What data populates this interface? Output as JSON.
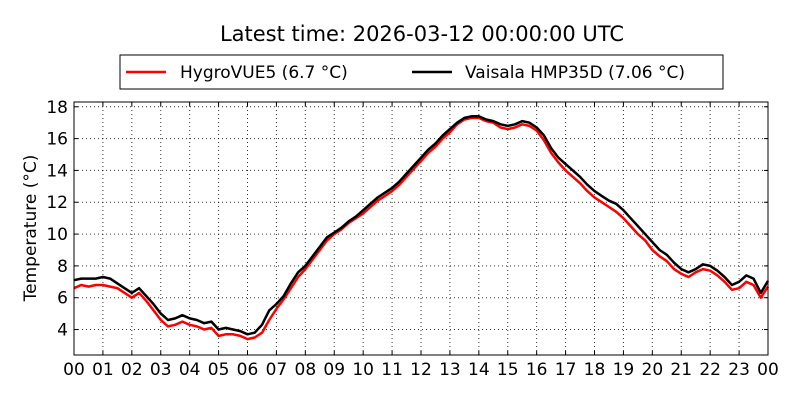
{
  "chart_data": {
    "type": "line",
    "title": "Latest time: 2026-03-12 00:00:00 UTC",
    "xlabel": "",
    "ylabel": "Temperature (°C)",
    "xlim": [
      0,
      24
    ],
    "ylim": [
      2.4,
      18.3
    ],
    "xticks": [
      0,
      1,
      2,
      3,
      4,
      5,
      6,
      7,
      8,
      9,
      10,
      11,
      12,
      13,
      14,
      15,
      16,
      17,
      18,
      19,
      20,
      21,
      22,
      23,
      24
    ],
    "xtick_labels": [
      "00",
      "01",
      "02",
      "03",
      "04",
      "05",
      "06",
      "07",
      "08",
      "09",
      "10",
      "11",
      "12",
      "13",
      "14",
      "15",
      "16",
      "17",
      "18",
      "19",
      "20",
      "21",
      "22",
      "23",
      "00"
    ],
    "yticks": [
      4,
      6,
      8,
      10,
      12,
      14,
      16,
      18
    ],
    "ytick_labels": [
      "4",
      "6",
      "8",
      "10",
      "12",
      "14",
      "16",
      "18"
    ],
    "grid": true,
    "legend_position": "top",
    "series": [
      {
        "name": "HygroVUE5 (6.7 °C)",
        "color": "#ff0000",
        "points": [
          [
            0,
            6.6
          ],
          [
            0.25,
            6.8
          ],
          [
            0.5,
            6.7
          ],
          [
            0.75,
            6.8
          ],
          [
            1,
            6.8
          ],
          [
            1.25,
            6.7
          ],
          [
            1.5,
            6.6
          ],
          [
            1.75,
            6.3
          ],
          [
            2,
            6.0
          ],
          [
            2.25,
            6.3
          ],
          [
            2.5,
            5.8
          ],
          [
            2.75,
            5.2
          ],
          [
            3,
            4.6
          ],
          [
            3.25,
            4.2
          ],
          [
            3.5,
            4.3
          ],
          [
            3.75,
            4.5
          ],
          [
            4,
            4.3
          ],
          [
            4.25,
            4.2
          ],
          [
            4.5,
            4.0
          ],
          [
            4.75,
            4.1
          ],
          [
            5,
            3.6
          ],
          [
            5.25,
            3.7
          ],
          [
            5.5,
            3.7
          ],
          [
            5.75,
            3.6
          ],
          [
            6,
            3.4
          ],
          [
            6.25,
            3.5
          ],
          [
            6.5,
            3.8
          ],
          [
            6.75,
            4.6
          ],
          [
            7,
            5.3
          ],
          [
            7.25,
            5.9
          ],
          [
            7.5,
            6.6
          ],
          [
            7.75,
            7.3
          ],
          [
            8,
            7.8
          ],
          [
            8.25,
            8.4
          ],
          [
            8.5,
            9.0
          ],
          [
            8.75,
            9.6
          ],
          [
            9,
            10.0
          ],
          [
            9.25,
            10.3
          ],
          [
            9.5,
            10.7
          ],
          [
            9.75,
            11.0
          ],
          [
            10,
            11.3
          ],
          [
            10.25,
            11.7
          ],
          [
            10.5,
            12.1
          ],
          [
            10.75,
            12.4
          ],
          [
            11,
            12.7
          ],
          [
            11.25,
            13.1
          ],
          [
            11.5,
            13.6
          ],
          [
            11.75,
            14.1
          ],
          [
            12,
            14.6
          ],
          [
            12.25,
            15.1
          ],
          [
            12.5,
            15.5
          ],
          [
            12.75,
            16.0
          ],
          [
            13,
            16.4
          ],
          [
            13.25,
            16.9
          ],
          [
            13.5,
            17.2
          ],
          [
            13.75,
            17.3
          ],
          [
            14,
            17.3
          ],
          [
            14.25,
            17.1
          ],
          [
            14.5,
            17.0
          ],
          [
            14.75,
            16.7
          ],
          [
            15,
            16.6
          ],
          [
            15.25,
            16.7
          ],
          [
            15.5,
            16.9
          ],
          [
            15.75,
            16.8
          ],
          [
            16,
            16.5
          ],
          [
            16.25,
            15.9
          ],
          [
            16.5,
            15.1
          ],
          [
            16.75,
            14.5
          ],
          [
            17,
            14.0
          ],
          [
            17.25,
            13.6
          ],
          [
            17.5,
            13.2
          ],
          [
            17.75,
            12.7
          ],
          [
            18,
            12.3
          ],
          [
            18.25,
            12.0
          ],
          [
            18.5,
            11.7
          ],
          [
            18.75,
            11.4
          ],
          [
            19,
            11.0
          ],
          [
            19.25,
            10.5
          ],
          [
            19.5,
            10.0
          ],
          [
            19.75,
            9.6
          ],
          [
            20,
            9.0
          ],
          [
            20.25,
            8.6
          ],
          [
            20.5,
            8.3
          ],
          [
            20.75,
            7.8
          ],
          [
            21,
            7.5
          ],
          [
            21.25,
            7.3
          ],
          [
            21.5,
            7.6
          ],
          [
            21.75,
            7.8
          ],
          [
            22,
            7.7
          ],
          [
            22.25,
            7.4
          ],
          [
            22.5,
            7.0
          ],
          [
            22.75,
            6.5
          ],
          [
            23,
            6.6
          ],
          [
            23.25,
            7.0
          ],
          [
            23.5,
            6.8
          ],
          [
            23.75,
            6.0
          ],
          [
            24,
            6.7
          ]
        ]
      },
      {
        "name": "Vaisala HMP35D (7.06 °C)",
        "color": "#000000",
        "points": [
          [
            0,
            7.1
          ],
          [
            0.25,
            7.2
          ],
          [
            0.5,
            7.2
          ],
          [
            0.75,
            7.2
          ],
          [
            1,
            7.3
          ],
          [
            1.25,
            7.2
          ],
          [
            1.5,
            6.9
          ],
          [
            1.75,
            6.6
          ],
          [
            2,
            6.3
          ],
          [
            2.25,
            6.6
          ],
          [
            2.5,
            6.1
          ],
          [
            2.75,
            5.6
          ],
          [
            3,
            5.0
          ],
          [
            3.25,
            4.6
          ],
          [
            3.5,
            4.7
          ],
          [
            3.75,
            4.9
          ],
          [
            4,
            4.7
          ],
          [
            4.25,
            4.6
          ],
          [
            4.5,
            4.4
          ],
          [
            4.75,
            4.5
          ],
          [
            5,
            4.0
          ],
          [
            5.25,
            4.1
          ],
          [
            5.5,
            4.0
          ],
          [
            5.75,
            3.9
          ],
          [
            6,
            3.7
          ],
          [
            6.25,
            3.8
          ],
          [
            6.5,
            4.3
          ],
          [
            6.75,
            5.2
          ],
          [
            7,
            5.6
          ],
          [
            7.25,
            6.1
          ],
          [
            7.5,
            6.9
          ],
          [
            7.75,
            7.6
          ],
          [
            8,
            8.0
          ],
          [
            8.25,
            8.6
          ],
          [
            8.5,
            9.2
          ],
          [
            8.75,
            9.8
          ],
          [
            9,
            10.1
          ],
          [
            9.25,
            10.4
          ],
          [
            9.5,
            10.8
          ],
          [
            9.75,
            11.1
          ],
          [
            10,
            11.5
          ],
          [
            10.25,
            11.9
          ],
          [
            10.5,
            12.3
          ],
          [
            10.75,
            12.6
          ],
          [
            11,
            12.9
          ],
          [
            11.25,
            13.3
          ],
          [
            11.5,
            13.8
          ],
          [
            11.75,
            14.3
          ],
          [
            12,
            14.8
          ],
          [
            12.25,
            15.3
          ],
          [
            12.5,
            15.7
          ],
          [
            12.75,
            16.2
          ],
          [
            13,
            16.6
          ],
          [
            13.25,
            17.0
          ],
          [
            13.5,
            17.3
          ],
          [
            13.75,
            17.4
          ],
          [
            14,
            17.4
          ],
          [
            14.25,
            17.2
          ],
          [
            14.5,
            17.1
          ],
          [
            14.75,
            16.9
          ],
          [
            15,
            16.8
          ],
          [
            15.25,
            16.9
          ],
          [
            15.5,
            17.1
          ],
          [
            15.75,
            17.0
          ],
          [
            16,
            16.7
          ],
          [
            16.25,
            16.2
          ],
          [
            16.5,
            15.4
          ],
          [
            16.75,
            14.8
          ],
          [
            17,
            14.4
          ],
          [
            17.25,
            14.0
          ],
          [
            17.5,
            13.6
          ],
          [
            17.75,
            13.1
          ],
          [
            18,
            12.7
          ],
          [
            18.25,
            12.4
          ],
          [
            18.5,
            12.1
          ],
          [
            18.75,
            11.9
          ],
          [
            19,
            11.5
          ],
          [
            19.25,
            11.0
          ],
          [
            19.5,
            10.5
          ],
          [
            19.75,
            10.0
          ],
          [
            20,
            9.5
          ],
          [
            20.25,
            9.0
          ],
          [
            20.5,
            8.7
          ],
          [
            20.75,
            8.2
          ],
          [
            21,
            7.8
          ],
          [
            21.25,
            7.6
          ],
          [
            21.5,
            7.8
          ],
          [
            21.75,
            8.1
          ],
          [
            22,
            8.0
          ],
          [
            22.25,
            7.7
          ],
          [
            22.5,
            7.3
          ],
          [
            22.75,
            6.8
          ],
          [
            23,
            7.0
          ],
          [
            23.25,
            7.4
          ],
          [
            23.5,
            7.2
          ],
          [
            23.75,
            6.3
          ],
          [
            24,
            7.06
          ]
        ]
      }
    ]
  }
}
